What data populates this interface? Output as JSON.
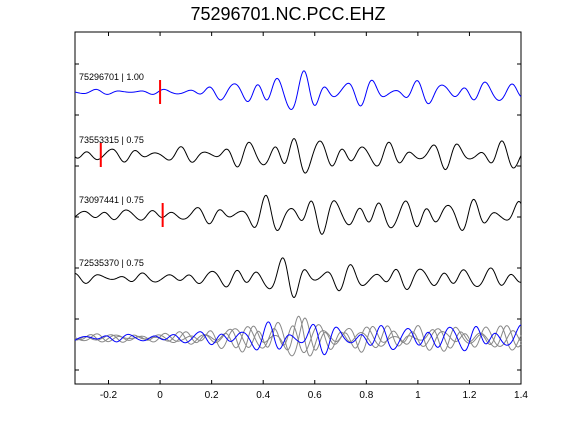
{
  "title": "75296701.NC.PCC.EHZ",
  "chart_data": {
    "type": "line",
    "title": "75296701.NC.PCC.EHZ",
    "xlabel": "",
    "ylabel": "",
    "xlim": [
      -0.33,
      1.4
    ],
    "xticks": [
      -0.2,
      0,
      0.2,
      0.4,
      0.6,
      0.8,
      1,
      1.2,
      1.4
    ],
    "xtick_labels": [
      "-0.2",
      "0",
      "0.2",
      "0.4",
      "0.6",
      "0.8",
      "1",
      "1.2",
      "1.4"
    ],
    "grid": false,
    "traces": [
      {
        "label": "75296701 | 1.00",
        "color": "#0000ff",
        "pick_time": 0.0
      },
      {
        "label": "73553315 | 0.75",
        "color": "#000000",
        "pick_time": -0.23
      },
      {
        "label": "73097441 | 0.75",
        "color": "#000000",
        "pick_time": 0.01
      },
      {
        "label": "72535370 | 0.75",
        "color": "#000000",
        "pick_time": null
      }
    ],
    "stack": {
      "label": "",
      "colors": [
        "#888888",
        "#888888",
        "#888888",
        "#0000ff"
      ]
    }
  },
  "colors": {
    "primary_trace": "#0000ff",
    "other_trace": "#000000",
    "stack_trace": "#888888",
    "pick_marker": "#ff0000",
    "axes": "#000000"
  }
}
